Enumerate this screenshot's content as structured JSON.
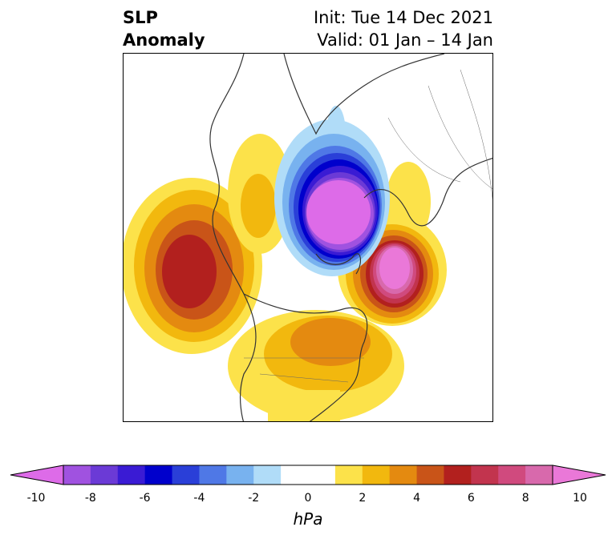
{
  "title": {
    "left_line1": "SLP",
    "left_line2": "Anomaly",
    "right_line1": "Init: Tue 14 Dec 2021",
    "right_line2": "Valid: 01 Jan – 14 Jan"
  },
  "colorbar": {
    "unit": "hPa",
    "range": [
      -10,
      10
    ],
    "ticks": [
      "-10",
      "-8",
      "-6",
      "-4",
      "-2",
      "0",
      "2",
      "4",
      "6",
      "8",
      "10"
    ],
    "colors": [
      "#dd6be8",
      "#a052e0",
      "#6b3ad6",
      "#3a1bd4",
      "#0000cc",
      "#2a3fd8",
      "#4f78e6",
      "#78b2ef",
      "#b0dcf8",
      "#ffffff",
      "#ffffff",
      "#fce24a",
      "#f2b80e",
      "#e48a10",
      "#c95418",
      "#b2201e",
      "#c2344e",
      "#d04a7e",
      "#d869ac",
      "#ea78d8"
    ]
  },
  "map": {
    "projection": "north-polar-stereographic",
    "features": [
      "positive-anomaly-north-pacific",
      "negative-anomaly-arctic",
      "positive-anomaly-scandinavia",
      "positive-anomaly-north-america"
    ]
  }
}
